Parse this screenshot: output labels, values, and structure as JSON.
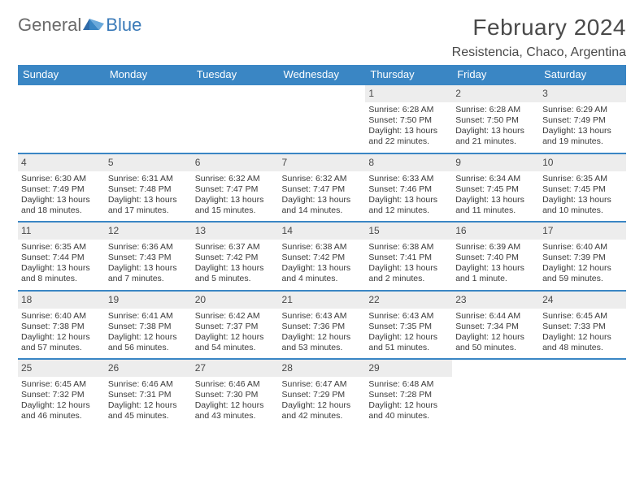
{
  "logo": {
    "text1": "General",
    "text2": "Blue"
  },
  "title": "February 2024",
  "subtitle": "Resistencia, Chaco, Argentina",
  "style": {
    "header_bg": "#3a86c4",
    "header_fg": "#ffffff",
    "daynum_bg": "#ededed",
    "rule_color": "#3a86c4",
    "text_color": "#3a3a3a",
    "title_color": "#4a4a4a",
    "logo_gray": "#6a6a6a",
    "logo_blue": "#3a7ab8",
    "title_fontsize": 28,
    "subtitle_fontsize": 16,
    "header_fontsize": 13,
    "cell_fontsize": 10.5
  },
  "weekdays": [
    "Sunday",
    "Monday",
    "Tuesday",
    "Wednesday",
    "Thursday",
    "Friday",
    "Saturday"
  ],
  "cells": [
    null,
    null,
    null,
    null,
    {
      "day": "1",
      "sunrise": "Sunrise: 6:28 AM",
      "sunset": "Sunset: 7:50 PM",
      "daylight1": "Daylight: 13 hours",
      "daylight2": "and 22 minutes."
    },
    {
      "day": "2",
      "sunrise": "Sunrise: 6:28 AM",
      "sunset": "Sunset: 7:50 PM",
      "daylight1": "Daylight: 13 hours",
      "daylight2": "and 21 minutes."
    },
    {
      "day": "3",
      "sunrise": "Sunrise: 6:29 AM",
      "sunset": "Sunset: 7:49 PM",
      "daylight1": "Daylight: 13 hours",
      "daylight2": "and 19 minutes."
    },
    {
      "day": "4",
      "sunrise": "Sunrise: 6:30 AM",
      "sunset": "Sunset: 7:49 PM",
      "daylight1": "Daylight: 13 hours",
      "daylight2": "and 18 minutes."
    },
    {
      "day": "5",
      "sunrise": "Sunrise: 6:31 AM",
      "sunset": "Sunset: 7:48 PM",
      "daylight1": "Daylight: 13 hours",
      "daylight2": "and 17 minutes."
    },
    {
      "day": "6",
      "sunrise": "Sunrise: 6:32 AM",
      "sunset": "Sunset: 7:47 PM",
      "daylight1": "Daylight: 13 hours",
      "daylight2": "and 15 minutes."
    },
    {
      "day": "7",
      "sunrise": "Sunrise: 6:32 AM",
      "sunset": "Sunset: 7:47 PM",
      "daylight1": "Daylight: 13 hours",
      "daylight2": "and 14 minutes."
    },
    {
      "day": "8",
      "sunrise": "Sunrise: 6:33 AM",
      "sunset": "Sunset: 7:46 PM",
      "daylight1": "Daylight: 13 hours",
      "daylight2": "and 12 minutes."
    },
    {
      "day": "9",
      "sunrise": "Sunrise: 6:34 AM",
      "sunset": "Sunset: 7:45 PM",
      "daylight1": "Daylight: 13 hours",
      "daylight2": "and 11 minutes."
    },
    {
      "day": "10",
      "sunrise": "Sunrise: 6:35 AM",
      "sunset": "Sunset: 7:45 PM",
      "daylight1": "Daylight: 13 hours",
      "daylight2": "and 10 minutes."
    },
    {
      "day": "11",
      "sunrise": "Sunrise: 6:35 AM",
      "sunset": "Sunset: 7:44 PM",
      "daylight1": "Daylight: 13 hours",
      "daylight2": "and 8 minutes."
    },
    {
      "day": "12",
      "sunrise": "Sunrise: 6:36 AM",
      "sunset": "Sunset: 7:43 PM",
      "daylight1": "Daylight: 13 hours",
      "daylight2": "and 7 minutes."
    },
    {
      "day": "13",
      "sunrise": "Sunrise: 6:37 AM",
      "sunset": "Sunset: 7:42 PM",
      "daylight1": "Daylight: 13 hours",
      "daylight2": "and 5 minutes."
    },
    {
      "day": "14",
      "sunrise": "Sunrise: 6:38 AM",
      "sunset": "Sunset: 7:42 PM",
      "daylight1": "Daylight: 13 hours",
      "daylight2": "and 4 minutes."
    },
    {
      "day": "15",
      "sunrise": "Sunrise: 6:38 AM",
      "sunset": "Sunset: 7:41 PM",
      "daylight1": "Daylight: 13 hours",
      "daylight2": "and 2 minutes."
    },
    {
      "day": "16",
      "sunrise": "Sunrise: 6:39 AM",
      "sunset": "Sunset: 7:40 PM",
      "daylight1": "Daylight: 13 hours",
      "daylight2": "and 1 minute."
    },
    {
      "day": "17",
      "sunrise": "Sunrise: 6:40 AM",
      "sunset": "Sunset: 7:39 PM",
      "daylight1": "Daylight: 12 hours",
      "daylight2": "and 59 minutes."
    },
    {
      "day": "18",
      "sunrise": "Sunrise: 6:40 AM",
      "sunset": "Sunset: 7:38 PM",
      "daylight1": "Daylight: 12 hours",
      "daylight2": "and 57 minutes."
    },
    {
      "day": "19",
      "sunrise": "Sunrise: 6:41 AM",
      "sunset": "Sunset: 7:38 PM",
      "daylight1": "Daylight: 12 hours",
      "daylight2": "and 56 minutes."
    },
    {
      "day": "20",
      "sunrise": "Sunrise: 6:42 AM",
      "sunset": "Sunset: 7:37 PM",
      "daylight1": "Daylight: 12 hours",
      "daylight2": "and 54 minutes."
    },
    {
      "day": "21",
      "sunrise": "Sunrise: 6:43 AM",
      "sunset": "Sunset: 7:36 PM",
      "daylight1": "Daylight: 12 hours",
      "daylight2": "and 53 minutes."
    },
    {
      "day": "22",
      "sunrise": "Sunrise: 6:43 AM",
      "sunset": "Sunset: 7:35 PM",
      "daylight1": "Daylight: 12 hours",
      "daylight2": "and 51 minutes."
    },
    {
      "day": "23",
      "sunrise": "Sunrise: 6:44 AM",
      "sunset": "Sunset: 7:34 PM",
      "daylight1": "Daylight: 12 hours",
      "daylight2": "and 50 minutes."
    },
    {
      "day": "24",
      "sunrise": "Sunrise: 6:45 AM",
      "sunset": "Sunset: 7:33 PM",
      "daylight1": "Daylight: 12 hours",
      "daylight2": "and 48 minutes."
    },
    {
      "day": "25",
      "sunrise": "Sunrise: 6:45 AM",
      "sunset": "Sunset: 7:32 PM",
      "daylight1": "Daylight: 12 hours",
      "daylight2": "and 46 minutes."
    },
    {
      "day": "26",
      "sunrise": "Sunrise: 6:46 AM",
      "sunset": "Sunset: 7:31 PM",
      "daylight1": "Daylight: 12 hours",
      "daylight2": "and 45 minutes."
    },
    {
      "day": "27",
      "sunrise": "Sunrise: 6:46 AM",
      "sunset": "Sunset: 7:30 PM",
      "daylight1": "Daylight: 12 hours",
      "daylight2": "and 43 minutes."
    },
    {
      "day": "28",
      "sunrise": "Sunrise: 6:47 AM",
      "sunset": "Sunset: 7:29 PM",
      "daylight1": "Daylight: 12 hours",
      "daylight2": "and 42 minutes."
    },
    {
      "day": "29",
      "sunrise": "Sunrise: 6:48 AM",
      "sunset": "Sunset: 7:28 PM",
      "daylight1": "Daylight: 12 hours",
      "daylight2": "and 40 minutes."
    },
    null,
    null
  ]
}
